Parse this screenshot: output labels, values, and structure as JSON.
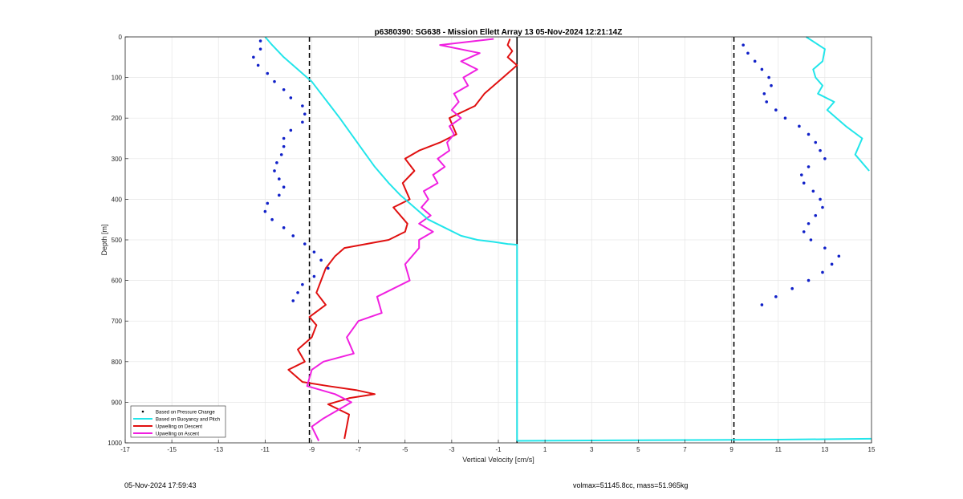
{
  "footer": {
    "timestamp": "05-Nov-2024 17:59:43",
    "volmax_mass": "volmax=51145.8cc, mass=51.965kg"
  },
  "colors": {
    "pressure": "#1020c8",
    "buoyancy": "#22e5ea",
    "descent": "#e01010",
    "ascent": "#f020e0",
    "grid": "#e6e6e6",
    "axis": "#262626"
  },
  "chart_data": {
    "type": "line",
    "title": "p6380390: SG638 - Mission Ellett Array 13 05-Nov-2024 12:21:14Z",
    "xlabel": "Vertical Velocity [cm/s]",
    "ylabel": "Depth [m]",
    "xlim": [
      -17,
      15
    ],
    "ylim": [
      0,
      1000
    ],
    "y_reversed": true,
    "grid": true,
    "legend_position": "bottom-left",
    "x_ticks": [
      -17,
      -15,
      -13,
      -11,
      -9,
      -7,
      -5,
      -3,
      -1,
      1,
      3,
      5,
      7,
      9,
      11,
      13,
      15
    ],
    "x_tick_labels": [
      "-17",
      "-15",
      "-13",
      "-11",
      "-9",
      "-7",
      "-5",
      "-3",
      "-1",
      "1",
      "3",
      "5",
      "7",
      "9",
      "11",
      "13",
      "15"
    ],
    "y_ticks": [
      0,
      100,
      200,
      300,
      400,
      500,
      600,
      700,
      800,
      900,
      1000
    ],
    "y_tick_labels": [
      "0",
      "100",
      "200",
      "300",
      "400",
      "500",
      "600",
      "700",
      "800",
      "900",
      "1000"
    ],
    "reference_lines": {
      "dashed_x": [
        -9.1,
        9.1
      ],
      "solid_x": -0.2,
      "solid_y_range": [
        0,
        1000
      ]
    },
    "series": [
      {
        "name": "Based on Pressure Change",
        "style": "dots",
        "segments": [
          {
            "x": [
              -11.2,
              -11.2,
              -11.5,
              -11.3,
              -10.9,
              -10.6,
              -10.2,
              -9.9,
              -9.4,
              -9.3,
              -9.4,
              -9.9,
              -10.2,
              -10.2,
              -10.3,
              -10.5,
              -10.6,
              -10.4,
              -10.2,
              -10.4,
              -10.9,
              -11.0,
              -10.7,
              -10.2,
              -9.8,
              -9.3,
              -8.9,
              -8.6,
              -8.3,
              -8.9,
              -9.4,
              -9.6,
              -9.8
            ],
            "y": [
              10,
              30,
              50,
              70,
              90,
              110,
              130,
              150,
              170,
              190,
              210,
              230,
              250,
              270,
              290,
              310,
              330,
              350,
              370,
              390,
              410,
              430,
              450,
              470,
              490,
              510,
              530,
              550,
              570,
              590,
              610,
              630,
              650
            ]
          },
          {
            "x": [
              9.5,
              9.7,
              10.0,
              10.3,
              10.6,
              10.7,
              10.4,
              10.5,
              10.9,
              11.3,
              11.9,
              12.3,
              12.6,
              12.8,
              13.0,
              12.3,
              12.0,
              12.1,
              12.5,
              12.8,
              12.9,
              12.6,
              12.3,
              12.1,
              12.4,
              13.0,
              13.6,
              13.3,
              12.9,
              12.3,
              11.6,
              10.9,
              10.3
            ],
            "y": [
              20,
              40,
              60,
              80,
              100,
              120,
              140,
              160,
              180,
              200,
              220,
              240,
              260,
              280,
              300,
              320,
              340,
              360,
              380,
              400,
              420,
              440,
              460,
              480,
              500,
              520,
              540,
              560,
              580,
              600,
              620,
              640,
              660
            ]
          }
        ]
      },
      {
        "name": "Based on Buoyancy and Pitch",
        "style": "line",
        "segments": [
          {
            "x": [
              -11.0,
              -10.7,
              -10.2,
              -9.6,
              -9.0,
              -8.6,
              -8.2,
              -7.8,
              -7.3,
              -6.8,
              -6.3,
              -5.7,
              -5.2,
              -4.6,
              -4.0,
              -3.3,
              -2.6,
              -1.9,
              -1.2,
              -0.6,
              -0.2,
              -0.2,
              -0.2,
              -0.2,
              -0.2,
              -0.2
            ],
            "y": [
              0,
              20,
              50,
              80,
              110,
              140,
              170,
              200,
              240,
              280,
              320,
              360,
              390,
              420,
              450,
              470,
              490,
              500,
              505,
              510,
              512,
              600,
              700,
              800,
              900,
              995
            ]
          },
          {
            "x": [
              12.2,
              13.0,
              12.9,
              12.5,
              12.6,
              12.9,
              12.7,
              13.4,
              13.1,
              13.5,
              13.9,
              14.6,
              14.3,
              14.9
            ],
            "y": [
              0,
              30,
              60,
              80,
              100,
              120,
              140,
              160,
              180,
              200,
              220,
              250,
              290,
              330
            ]
          },
          {
            "x": [
              -0.2,
              3.0,
              7.0,
              11.0,
              15.0
            ],
            "y": [
              995,
              994,
              993,
              992,
              990
            ]
          }
        ]
      },
      {
        "name": "Upwelling on Descent",
        "style": "line",
        "segments": [
          {
            "x": [
              -0.5,
              -0.6,
              -0.4,
              -0.6,
              -0.2,
              -0.8,
              -1.6,
              -2.0,
              -3.1,
              -2.8,
              -3.5,
              -4.4,
              -5.0,
              -4.6,
              -5.1,
              -4.8,
              -5.5,
              -4.9,
              -5.0,
              -5.7,
              -7.6,
              -8.0,
              -8.4,
              -8.6,
              -8.8,
              -8.4,
              -9.1,
              -8.8,
              -9.0,
              -9.6,
              -9.3,
              -10.0,
              -9.4,
              -8.3,
              -7.1,
              -6.3,
              -7.4,
              -8.3,
              -7.4,
              -7.6
            ],
            "y": [
              5,
              20,
              35,
              50,
              70,
              100,
              140,
              170,
              200,
              240,
              260,
              280,
              300,
              330,
              360,
              400,
              420,
              460,
              480,
              500,
              520,
              540,
              570,
              600,
              630,
              660,
              690,
              710,
              740,
              770,
              800,
              820,
              850,
              860,
              870,
              880,
              890,
              905,
              930,
              990
            ]
          }
        ]
      },
      {
        "name": "Upwelling on Ascent",
        "style": "line",
        "segments": [
          {
            "x": [
              -1.2,
              -3.5,
              -1.8,
              -2.6,
              -1.9,
              -2.5,
              -2.3,
              -2.9,
              -2.7,
              -3.0,
              -2.6,
              -3.1,
              -2.9,
              -3.2,
              -3.1,
              -3.6,
              -3.3,
              -3.8,
              -3.6,
              -4.2,
              -4.0,
              -4.3,
              -3.9,
              -4.4,
              -3.8,
              -4.4,
              -4.4,
              -5.0,
              -4.8,
              -6.2,
              -6.0,
              -7.0,
              -7.5,
              -7.2,
              -8.5,
              -9.0,
              -9.2,
              -8.0,
              -7.3,
              -8.5,
              -9.0,
              -8.7
            ],
            "y": [
              5,
              20,
              40,
              60,
              80,
              100,
              120,
              140,
              160,
              180,
              200,
              220,
              240,
              260,
              280,
              300,
              320,
              340,
              360,
              380,
              400,
              420,
              440,
              460,
              480,
              500,
              520,
              560,
              600,
              640,
              680,
              700,
              740,
              780,
              800,
              820,
              860,
              880,
              900,
              940,
              960,
              995
            ]
          }
        ]
      }
    ]
  }
}
